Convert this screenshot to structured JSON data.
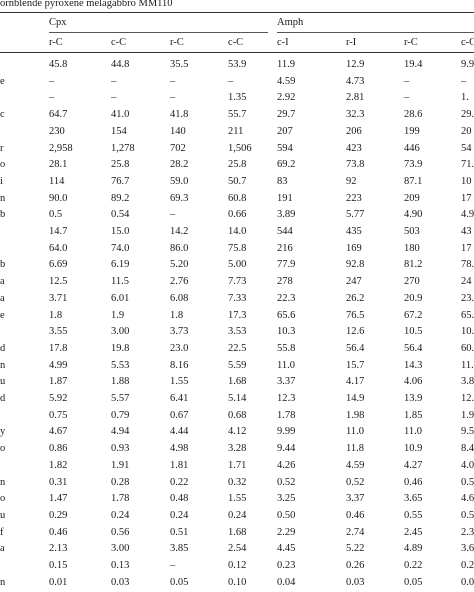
{
  "caption": "ornblende pyroxene melagabbro MM110",
  "groups": [
    "Cpx",
    "Amph"
  ],
  "column_headers": [
    "r-C",
    "c-C",
    "r-C",
    "c-C",
    "c-I",
    "r-I",
    "r-C",
    "c-C"
  ],
  "rows": [
    {
      "label": "",
      "values": [
        "45.8",
        "44.8",
        "35.5",
        "53.9",
        "11.9",
        "12.9",
        "19.4",
        "9.9"
      ]
    },
    {
      "label": "e",
      "values": [
        "–",
        "–",
        "–",
        "–",
        "4.59",
        "4.73",
        "–",
        "–"
      ]
    },
    {
      "label": "",
      "values": [
        "–",
        "–",
        "–",
        "1.35",
        "2.92",
        "2.81",
        "–",
        "1."
      ]
    },
    {
      "label": "c",
      "values": [
        "64.7",
        "41.0",
        "41.8",
        "55.7",
        "29.7",
        "32.3",
        "28.6",
        "29."
      ]
    },
    {
      "label": "",
      "values": [
        "230",
        "154",
        "140",
        "211",
        "207",
        "206",
        "199",
        "20"
      ]
    },
    {
      "label": "r",
      "values": [
        "2,958",
        "1,278",
        "702",
        "1,506",
        "594",
        "423",
        "446",
        "54"
      ]
    },
    {
      "label": "o",
      "values": [
        "28.1",
        "25.8",
        "28.2",
        "25.8",
        "69.2",
        "73.8",
        "73.9",
        "71."
      ]
    },
    {
      "label": "i",
      "values": [
        "114",
        "76.7",
        "59.0",
        "50.7",
        "83",
        "92",
        "87.1",
        "10"
      ]
    },
    {
      "label": "n",
      "values": [
        "90.0",
        "89.2",
        "69.3",
        "60.8",
        "191",
        "223",
        "209",
        "17"
      ]
    },
    {
      "label": "b",
      "values": [
        "0.5",
        "0.54",
        "–",
        "0.66",
        "3.89",
        "5.77",
        "4.90",
        "4.9"
      ]
    },
    {
      "label": "",
      "values": [
        "14.7",
        "15.0",
        "14.2",
        "14.0",
        "544",
        "435",
        "503",
        "43"
      ]
    },
    {
      "label": "",
      "values": [
        "64.0",
        "74.0",
        "86.0",
        "75.8",
        "216",
        "169",
        "180",
        "17"
      ]
    },
    {
      "label": "b",
      "values": [
        "6.69",
        "6.19",
        "5.20",
        "5.00",
        "77.9",
        "92.8",
        "81.2",
        "78."
      ]
    },
    {
      "label": "a",
      "values": [
        "12.5",
        "11.5",
        "2.76",
        "7.73",
        "278",
        "247",
        "270",
        "24"
      ]
    },
    {
      "label": "a",
      "values": [
        "3.71",
        "6.01",
        "6.08",
        "7.33",
        "22.3",
        "26.2",
        "20.9",
        "23."
      ]
    },
    {
      "label": "e",
      "values": [
        "1.8",
        "1.9",
        "1.8",
        "17.3",
        "65.6",
        "76.5",
        "67.2",
        "65."
      ]
    },
    {
      "label": "",
      "values": [
        "3.55",
        "3.00",
        "3.73",
        "3.53",
        "10.3",
        "12.6",
        "10.5",
        "10."
      ]
    },
    {
      "label": "d",
      "values": [
        "17.8",
        "19.8",
        "23.0",
        "22.5",
        "55.8",
        "56.4",
        "56.4",
        "60."
      ]
    },
    {
      "label": "n",
      "values": [
        "4.99",
        "5.53",
        "8.16",
        "5.59",
        "11.0",
        "15.7",
        "14.3",
        "11."
      ]
    },
    {
      "label": "u",
      "values": [
        "1.87",
        "1.88",
        "1.55",
        "1.68",
        "3.37",
        "4.17",
        "4.06",
        "3.8"
      ]
    },
    {
      "label": "d",
      "values": [
        "5.92",
        "5.57",
        "6.41",
        "5.14",
        "12.3",
        "14.9",
        "13.9",
        "12."
      ]
    },
    {
      "label": "",
      "values": [
        "0.75",
        "0.79",
        "0.67",
        "0.68",
        "1.78",
        "1.98",
        "1.85",
        "1.9"
      ]
    },
    {
      "label": "y",
      "values": [
        "4.67",
        "4.94",
        "4.44",
        "4.12",
        "9.99",
        "11.0",
        "11.0",
        "9.5"
      ]
    },
    {
      "label": "o",
      "values": [
        "0.86",
        "0.93",
        "4.98",
        "3.28",
        "9.44",
        "11.8",
        "10.9",
        "8.4"
      ]
    },
    {
      "label": "",
      "values": [
        "1.82",
        "1.91",
        "1.81",
        "1.71",
        "4.26",
        "4.59",
        "4.27",
        "4.0"
      ]
    },
    {
      "label": "n",
      "values": [
        "0.31",
        "0.28",
        "0.22",
        "0.32",
        "0.52",
        "0.52",
        "0.46",
        "0.5"
      ]
    },
    {
      "label": "o",
      "values": [
        "1.47",
        "1.78",
        "0.48",
        "1.55",
        "3.25",
        "3.37",
        "3.65",
        "4.6"
      ]
    },
    {
      "label": "u",
      "values": [
        "0.29",
        "0.24",
        "0.24",
        "0.24",
        "0.50",
        "0.46",
        "0.55",
        "0.5"
      ]
    },
    {
      "label": "f",
      "values": [
        "0.46",
        "0.56",
        "0.51",
        "1.68",
        "2.29",
        "2.74",
        "2.45",
        "2.3"
      ]
    },
    {
      "label": "a",
      "values": [
        "2.13",
        "3.00",
        "3.85",
        "2.54",
        "4.45",
        "5.22",
        "4.89",
        "3.6"
      ]
    },
    {
      "label": "",
      "values": [
        "0.15",
        "0.13",
        "–",
        "0.12",
        "0.23",
        "0.26",
        "0.22",
        "0.2"
      ]
    },
    {
      "label": "n",
      "values": [
        "0.01",
        "0.03",
        "0.05",
        "0.10",
        "0.04",
        "0.03",
        "0.05",
        "0.0"
      ]
    }
  ]
}
